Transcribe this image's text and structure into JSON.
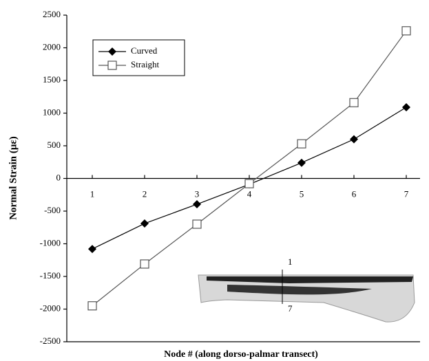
{
  "chart_data": {
    "type": "line",
    "x_label": "Node # (along dorso-palmar transect)",
    "y_label": "Normal Strain (με)",
    "categories": [
      "1",
      "2",
      "3",
      "4",
      "5",
      "6",
      "7"
    ],
    "series": [
      {
        "name": "Curved",
        "color": "#000000",
        "marker": "diamond",
        "values": [
          -1080,
          -690,
          -395,
          -90,
          240,
          600,
          1090
        ]
      },
      {
        "name": "Straight",
        "color": "#555555",
        "marker": "square",
        "values": [
          -1950,
          -1310,
          -700,
          -80,
          530,
          1160,
          2260
        ]
      }
    ],
    "ylim": [
      -2500,
      2500
    ],
    "yticks": [
      -2500,
      -2000,
      -1500,
      -1000,
      -500,
      0,
      500,
      1000,
      1500,
      2000,
      2500
    ],
    "legend": "upper-left",
    "annotations": [
      "1",
      "7"
    ]
  }
}
